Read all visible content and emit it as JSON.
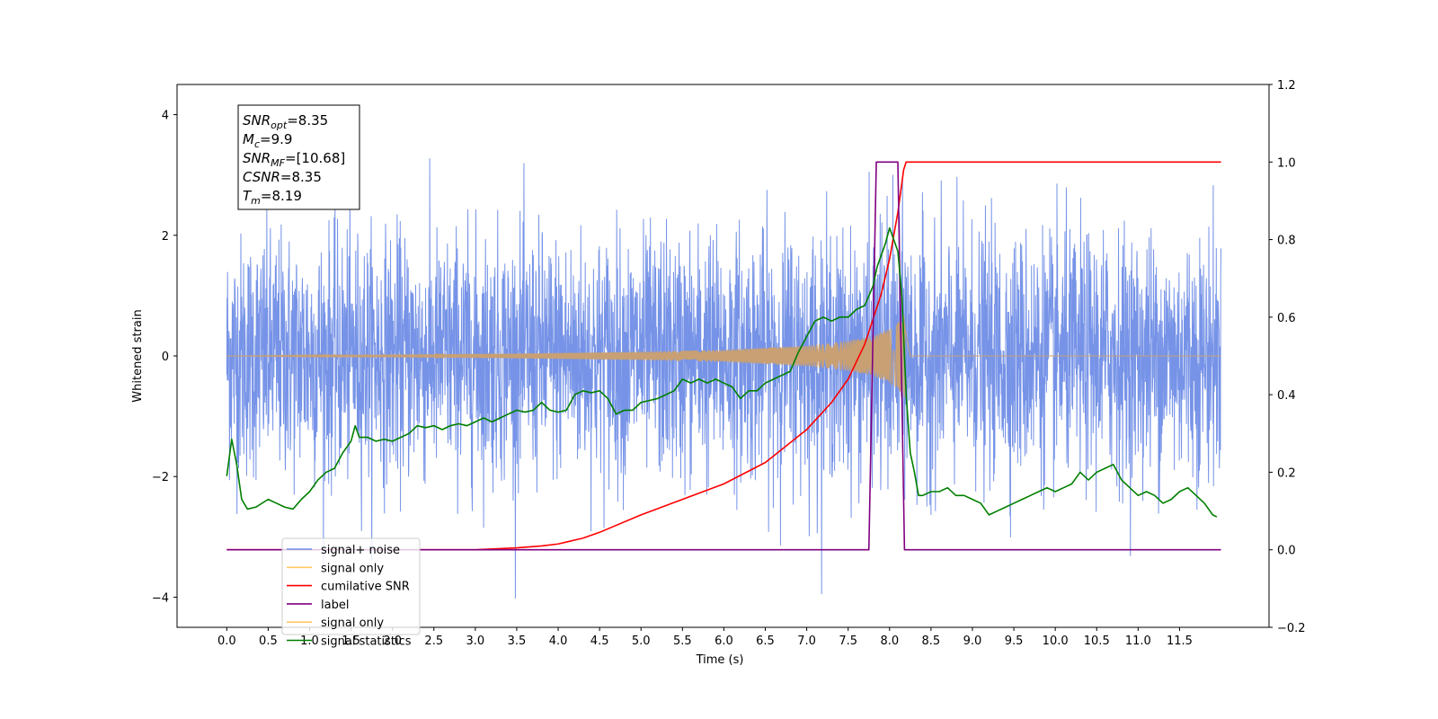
{
  "chart_data": {
    "type": "line",
    "xlabel": "Time (s)",
    "ylabel": "Whitened strain",
    "xlim": [
      -0.6,
      12.58
    ],
    "ylim": [
      -4.5,
      4.5
    ],
    "ylim_right": [
      -0.2,
      1.2
    ],
    "x_ticks": [
      "0.0",
      "0.5",
      "1.0",
      "1.5",
      "2.0",
      "2.5",
      "3.0",
      "3.5",
      "4.0",
      "4.5",
      "5.0",
      "5.5",
      "6.0",
      "6.5",
      "7.0",
      "7.5",
      "8.0",
      "8.5",
      "9.0",
      "9.5",
      "10.0",
      "10.5",
      "11.0",
      "11.5"
    ],
    "y_ticks_left": [
      "4",
      "2",
      "0",
      "−2",
      "−4"
    ],
    "y_ticks_left_values": [
      4,
      2,
      0,
      -2,
      -4
    ],
    "y_ticks_right": [
      "1.2",
      "1.0",
      "0.8",
      "0.6",
      "0.4",
      "0.2",
      "0.0",
      "−0.2"
    ],
    "y_ticks_right_values": [
      1.2,
      1.0,
      0.8,
      0.6,
      0.4,
      0.2,
      0.0,
      -0.2
    ],
    "grid": false,
    "legend_placement": "lower-left",
    "annotation": {
      "lines": [
        {
          "var": "SNR",
          "sub": "opt",
          "value": "=8.35"
        },
        {
          "var": "M",
          "sub": "c",
          "value": "=9.9"
        },
        {
          "var": "SNR",
          "sub": "MF",
          "value": "=[10.68]"
        },
        {
          "var": "CSNR",
          "sub": "",
          "value": "=8.35"
        },
        {
          "var": "T",
          "sub": "m",
          "value": "=8.19"
        }
      ]
    },
    "legend": [
      {
        "name": "signal+ noise",
        "color": "#6f8de6"
      },
      {
        "name": "signal only",
        "color": "#ffc864"
      },
      {
        "name": "cumilative SNR",
        "color": "#ff0000"
      },
      {
        "name": "label",
        "color": "#800080"
      },
      {
        "name": "signal only",
        "color": "#ffc864"
      },
      {
        "name": "signal statistics",
        "color": "#007f00"
      }
    ],
    "series": [
      {
        "name": "signal+ noise",
        "axis": "left",
        "color": "#6f8de6",
        "t_start": 0.0,
        "t_end": 12.0,
        "noise_std": 1.0,
        "y_min": -4.1,
        "y_max": 3.8
      },
      {
        "name": "signal only",
        "axis": "left",
        "color": "#c8a074",
        "t_start": 0.0,
        "t_end": 12.0,
        "merger_time": 8.19,
        "envelope": {
          "t": [
            0.0,
            2.0,
            3.5,
            5.0,
            6.0,
            7.0,
            7.5,
            7.8,
            8.0,
            8.1,
            8.15,
            8.19,
            8.25,
            12.0
          ],
          "amp": [
            0.0,
            0.02,
            0.04,
            0.07,
            0.1,
            0.17,
            0.25,
            0.33,
            0.45,
            0.55,
            0.65,
            0.7,
            0.0,
            0.0
          ]
        }
      },
      {
        "name": "cumilative SNR",
        "axis": "right",
        "color": "#ff0000",
        "x": [
          0.0,
          3.0,
          3.5,
          3.8,
          4.0,
          4.3,
          4.5,
          5.0,
          5.5,
          6.0,
          6.5,
          7.0,
          7.3,
          7.5,
          7.7,
          7.9,
          8.0,
          8.1,
          8.17,
          8.2,
          12.0
        ],
        "y": [
          0.0,
          0.0,
          0.005,
          0.01,
          0.015,
          0.03,
          0.045,
          0.09,
          0.13,
          0.17,
          0.225,
          0.31,
          0.38,
          0.44,
          0.53,
          0.66,
          0.75,
          0.87,
          0.98,
          1.0,
          1.0
        ]
      },
      {
        "name": "label",
        "axis": "right",
        "color": "#800080",
        "x": [
          0.0,
          7.75,
          7.84,
          8.1,
          8.18,
          12.0
        ],
        "y": [
          0.0,
          0.0,
          1.0,
          1.0,
          0.0,
          0.0
        ]
      },
      {
        "name": "signal statistics",
        "axis": "right",
        "color": "#007f00",
        "x": [
          0.0,
          0.06,
          0.12,
          0.18,
          0.25,
          0.35,
          0.5,
          0.6,
          0.7,
          0.8,
          0.9,
          1.0,
          1.1,
          1.2,
          1.3,
          1.4,
          1.5,
          1.55,
          1.6,
          1.7,
          1.8,
          1.9,
          2.0,
          2.1,
          2.2,
          2.3,
          2.4,
          2.5,
          2.6,
          2.7,
          2.8,
          2.9,
          3.0,
          3.1,
          3.2,
          3.3,
          3.4,
          3.5,
          3.6,
          3.7,
          3.8,
          3.9,
          4.0,
          4.1,
          4.2,
          4.3,
          4.4,
          4.5,
          4.6,
          4.7,
          4.8,
          4.9,
          5.0,
          5.1,
          5.2,
          5.3,
          5.4,
          5.5,
          5.6,
          5.7,
          5.8,
          5.9,
          6.0,
          6.1,
          6.2,
          6.3,
          6.4,
          6.5,
          6.6,
          6.7,
          6.8,
          6.9,
          7.0,
          7.1,
          7.2,
          7.3,
          7.4,
          7.5,
          7.6,
          7.7,
          7.8,
          7.85,
          7.9,
          7.95,
          8.0,
          8.05,
          8.1,
          8.15,
          8.2,
          8.25,
          8.3,
          8.35,
          8.4,
          8.5,
          8.6,
          8.7,
          8.8,
          8.9,
          9.0,
          9.1,
          9.2,
          9.3,
          9.4,
          9.5,
          9.6,
          9.7,
          9.8,
          9.9,
          10.0,
          10.1,
          10.2,
          10.3,
          10.4,
          10.5,
          10.6,
          10.7,
          10.8,
          10.9,
          11.0,
          11.1,
          11.2,
          11.3,
          11.4,
          11.5,
          11.6,
          11.7,
          11.8,
          11.9,
          11.95
        ],
        "y": [
          0.19,
          0.285,
          0.22,
          0.13,
          0.105,
          0.11,
          0.13,
          0.12,
          0.11,
          0.105,
          0.13,
          0.15,
          0.18,
          0.2,
          0.21,
          0.25,
          0.28,
          0.32,
          0.29,
          0.29,
          0.28,
          0.285,
          0.28,
          0.29,
          0.3,
          0.32,
          0.315,
          0.32,
          0.31,
          0.32,
          0.325,
          0.32,
          0.33,
          0.34,
          0.33,
          0.34,
          0.35,
          0.36,
          0.355,
          0.36,
          0.38,
          0.36,
          0.355,
          0.36,
          0.4,
          0.41,
          0.405,
          0.41,
          0.39,
          0.35,
          0.36,
          0.36,
          0.38,
          0.385,
          0.39,
          0.4,
          0.41,
          0.44,
          0.43,
          0.44,
          0.43,
          0.44,
          0.43,
          0.42,
          0.39,
          0.41,
          0.41,
          0.43,
          0.44,
          0.45,
          0.46,
          0.51,
          0.55,
          0.59,
          0.6,
          0.59,
          0.6,
          0.6,
          0.62,
          0.63,
          0.68,
          0.73,
          0.76,
          0.79,
          0.83,
          0.8,
          0.77,
          0.65,
          0.4,
          0.25,
          0.2,
          0.14,
          0.14,
          0.15,
          0.15,
          0.16,
          0.14,
          0.14,
          0.13,
          0.12,
          0.09,
          0.1,
          0.11,
          0.12,
          0.13,
          0.14,
          0.15,
          0.16,
          0.15,
          0.16,
          0.17,
          0.2,
          0.18,
          0.2,
          0.21,
          0.22,
          0.18,
          0.16,
          0.14,
          0.15,
          0.14,
          0.12,
          0.13,
          0.15,
          0.16,
          0.14,
          0.12,
          0.09,
          0.085
        ]
      }
    ]
  }
}
